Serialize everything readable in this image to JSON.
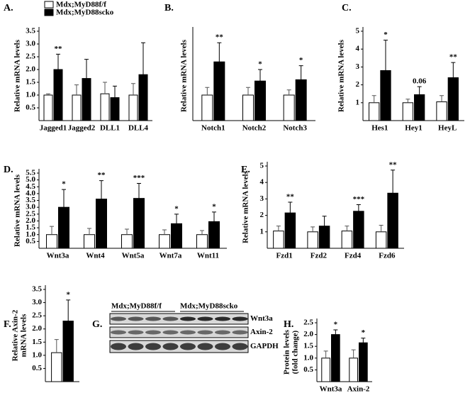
{
  "chart_data": [
    {
      "type": "bar",
      "label": "A.",
      "ylabel": [
        "Relative mRNA levels"
      ],
      "categories": [
        "Jagged1",
        "Jagged2",
        "DLL1",
        "DLL4"
      ],
      "series": [
        {
          "name": "Mdx;MyD88f/f",
          "color": "#ffffff",
          "values": [
            1.0,
            1.0,
            1.05,
            1.0
          ],
          "errors": [
            0.05,
            0.4,
            0.45,
            0.45
          ]
        },
        {
          "name": "Mdx;MyD88scko",
          "color": "#000000",
          "values": [
            2.0,
            1.65,
            0.9,
            1.8
          ],
          "errors": [
            0.6,
            0.75,
            0.45,
            1.25
          ]
        }
      ],
      "annotations": [
        "**",
        null,
        null,
        null
      ],
      "legend": "top-left",
      "ylim": [
        0,
        3.5
      ],
      "yticks": [
        0.5,
        {
          "value": 1,
          "label": "1.0"
        },
        1.5,
        {
          "value": 2,
          "label": "2.0"
        },
        2.5,
        {
          "value": 3,
          "label": "3.0"
        },
        3.5
      ]
    },
    {
      "type": "bar",
      "label": "B.",
      "ylabel": [
        "Relative mRNA levels"
      ],
      "categories": [
        "Notch1",
        "Notch2",
        "Notch3"
      ],
      "series": [
        {
          "color": "#ffffff",
          "values": [
            1.0,
            1.0,
            1.0
          ],
          "errors": [
            0.3,
            0.3,
            0.2
          ]
        },
        {
          "color": "#000000",
          "values": [
            2.3,
            1.55,
            1.6
          ],
          "errors": [
            0.75,
            0.45,
            0.55
          ]
        }
      ],
      "annotations": [
        "**",
        "*",
        "*"
      ],
      "ylim": [
        0,
        3.5
      ]
    },
    {
      "type": "bar",
      "label": "C.",
      "ylabel": [
        "Relative mRNA levels"
      ],
      "categories": [
        "Hes1",
        "Hey1",
        "HeyL"
      ],
      "series": [
        {
          "color": "#ffffff",
          "values": [
            1.0,
            1.0,
            1.05
          ],
          "errors": [
            0.4,
            0.2,
            0.35
          ]
        },
        {
          "color": "#000000",
          "values": [
            2.8,
            1.45,
            2.4
          ],
          "errors": [
            1.7,
            0.45,
            0.85
          ]
        }
      ],
      "annotations": [
        "*",
        "0.06",
        "**"
      ],
      "ylim": [
        0,
        5
      ],
      "yticks": [
        1,
        2,
        3,
        4,
        5
      ]
    },
    {
      "type": "bar",
      "label": "D.",
      "ylabel": [
        "Relative mRNA levels"
      ],
      "categories": [
        "Wnt3a",
        "Wnt4",
        "Wnt5a",
        "Wnt7a",
        "Wnt11"
      ],
      "series": [
        {
          "color": "#ffffff",
          "values": [
            1.0,
            1.0,
            1.0,
            1.0,
            1.0
          ],
          "errors": [
            0.6,
            0.45,
            0.4,
            0.35,
            0.3
          ]
        },
        {
          "color": "#000000",
          "values": [
            3.0,
            3.6,
            3.65,
            1.8,
            1.95
          ],
          "errors": [
            1.3,
            1.35,
            1.1,
            0.7,
            0.7
          ]
        }
      ],
      "annotations": [
        "*",
        "**",
        "***",
        "*",
        "*"
      ],
      "ylim": [
        0,
        5.5
      ],
      "yticks": [
        0.5,
        {
          "value": 1,
          "label": "1.0"
        },
        1.5,
        {
          "value": 2,
          "label": "2.0"
        },
        2.5,
        {
          "value": 3,
          "label": "3.0"
        },
        3.5,
        {
          "value": 4,
          "label": "4.0"
        },
        4.5,
        {
          "value": 5,
          "label": "5.0"
        },
        5.5
      ]
    },
    {
      "type": "bar",
      "label": "E.",
      "ylabel": [
        "Relative mRNA levels"
      ],
      "categories": [
        "Fzd1",
        "Fzd2",
        "Fzd4",
        "Fzd6"
      ],
      "series": [
        {
          "color": "#ffffff",
          "values": [
            1.05,
            1.0,
            1.05,
            1.0
          ],
          "errors": [
            0.3,
            0.3,
            0.3,
            0.4
          ]
        },
        {
          "color": "#000000",
          "values": [
            2.15,
            1.35,
            2.25,
            3.35
          ],
          "errors": [
            0.65,
            0.6,
            0.4,
            1.4
          ]
        }
      ],
      "annotations": [
        "**",
        null,
        "***",
        "**"
      ],
      "ylim": [
        0,
        5
      ],
      "yticks": [
        1,
        2,
        3,
        4,
        5
      ]
    },
    {
      "type": "bar",
      "label": "F.",
      "ylabel": [
        "Relative Axin-2",
        "mRNA levels"
      ],
      "categories": [
        null
      ],
      "series": [
        {
          "color": "#ffffff",
          "values": [
            1.1
          ],
          "errors": [
            0.5
          ]
        },
        {
          "color": "#000000",
          "values": [
            2.3
          ],
          "errors": [
            0.8
          ]
        }
      ],
      "annotations": [
        "*"
      ],
      "ylim": [
        0,
        3.5
      ],
      "yticks": [
        0.5,
        {
          "value": 1,
          "label": "1.0"
        },
        1.5,
        {
          "value": 2,
          "label": "2.0"
        },
        2.5,
        {
          "value": 3,
          "label": "3.0"
        },
        3.5
      ]
    },
    {
      "type": "bar",
      "label": "H.",
      "ylabel": [
        "Protein levels",
        "(fold change)"
      ],
      "categories": [
        "Wnt3a",
        "Axin-2"
      ],
      "series": [
        {
          "color": "#ffffff",
          "values": [
            1.0,
            1.0
          ],
          "errors": [
            0.3,
            0.35
          ]
        },
        {
          "color": "#000000",
          "values": [
            2.0,
            1.65
          ],
          "errors": [
            0.2,
            0.2
          ]
        }
      ],
      "annotations": [
        "*",
        "*"
      ],
      "ylim": [
        0,
        2.5
      ],
      "yticks": [
        0.5,
        {
          "value": 1,
          "label": "1.0"
        },
        1.5,
        {
          "value": 2,
          "label": "2.0"
        },
        2.5
      ]
    }
  ],
  "blot": {
    "label": "G.",
    "groups": [
      "Mdx;MyD88f/f",
      "Mdx;MyD88scko"
    ],
    "bands": [
      "Wnt3a",
      "Axin-2",
      "GAPDH"
    ]
  }
}
